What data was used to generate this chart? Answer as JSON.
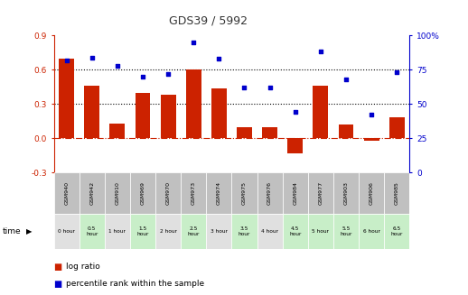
{
  "title": "GDS39 / 5992",
  "samples": [
    "GSM940",
    "GSM942",
    "GSM910",
    "GSM969",
    "GSM970",
    "GSM973",
    "GSM974",
    "GSM975",
    "GSM976",
    "GSM984",
    "GSM977",
    "GSM903",
    "GSM906",
    "GSM985"
  ],
  "time_labels": [
    "0 hour",
    "0.5\nhour",
    "1 hour",
    "1.5\nhour",
    "2 hour",
    "2.5\nhour",
    "3 hour",
    "3.5\nhour",
    "4 hour",
    "4.5\nhour",
    "5 hour",
    "5.5\nhour",
    "6 hour",
    "6.5\nhour"
  ],
  "log_ratio": [
    0.7,
    0.46,
    0.13,
    0.4,
    0.38,
    0.6,
    0.44,
    0.1,
    0.1,
    -0.13,
    0.46,
    0.12,
    -0.02,
    0.18
  ],
  "percentile": [
    82,
    84,
    78,
    70,
    72,
    95,
    83,
    62,
    62,
    44,
    88,
    68,
    42,
    73
  ],
  "bar_color": "#cc2200",
  "dot_color": "#0000cc",
  "background_color": "#ffffff",
  "left_axis_color": "#cc2200",
  "right_axis_color": "#0000cc",
  "ylim_left": [
    -0.3,
    0.9
  ],
  "ylim_right": [
    0,
    100
  ],
  "left_yticks": [
    -0.3,
    0.0,
    0.3,
    0.6,
    0.9
  ],
  "right_yticks": [
    0,
    25,
    50,
    75,
    100
  ],
  "hline_values": [
    0.3,
    0.6
  ],
  "zero_line": 0.0,
  "grid_color": "#000000",
  "time_bg_colors": [
    "#e0e0e0",
    "#c8eec8",
    "#e0e0e0",
    "#c8eec8",
    "#e0e0e0",
    "#c8eec8",
    "#e0e0e0",
    "#c8eec8",
    "#e0e0e0",
    "#c8eec8",
    "#c8eec8",
    "#c8eec8",
    "#c8eec8",
    "#c8eec8"
  ],
  "sample_bg_color": "#c0c0c0",
  "legend_log_ratio": "log ratio",
  "legend_percentile": "percentile rank within the sample",
  "time_label": "time"
}
